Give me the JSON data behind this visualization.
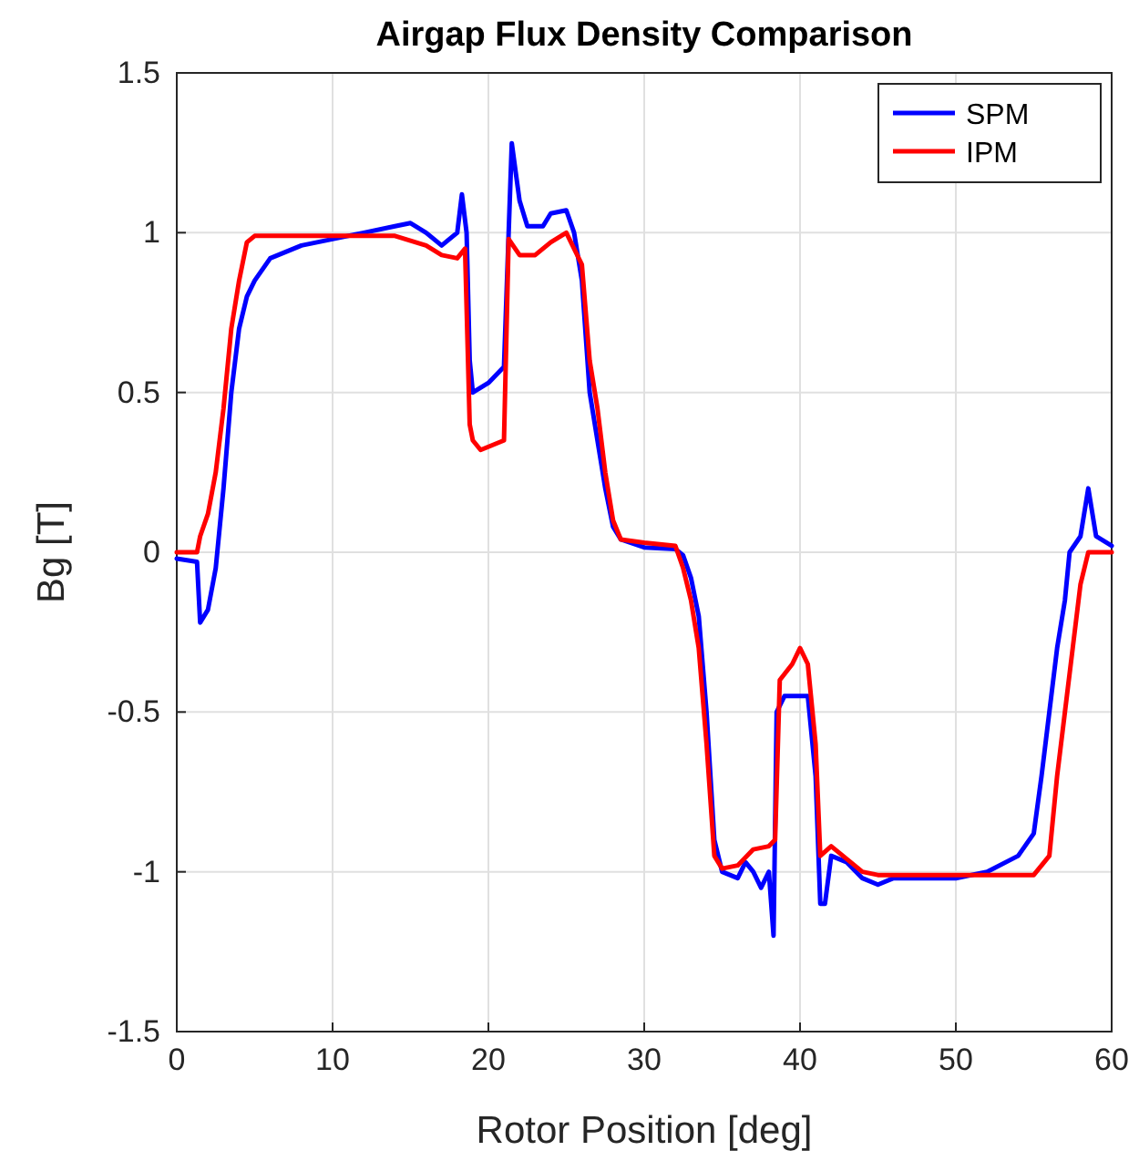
{
  "chart_data": {
    "type": "line",
    "title": "Airgap Flux Density Comparison",
    "xlabel": "Rotor Position [deg]",
    "ylabel": "Bg [T]",
    "xlim": [
      0,
      60
    ],
    "xticks": [
      0,
      10,
      20,
      30,
      40,
      50,
      60
    ],
    "ylim": [
      -1.5,
      1.5
    ],
    "yticks": [
      -1.5,
      -1,
      -0.5,
      0,
      0.5,
      1,
      1.5
    ],
    "grid": true,
    "legend": "top right",
    "line_style": "solid",
    "marker": "none",
    "series": [
      {
        "name": "SPM",
        "color": "#0000ff",
        "x": [
          0,
          1.3,
          1.5,
          2,
          2.5,
          3,
          3.5,
          4,
          4.5,
          5,
          6,
          8,
          10,
          12,
          14,
          15,
          16,
          17,
          18,
          18.3,
          18.6,
          18.8,
          19,
          20,
          21,
          21.5,
          22,
          22.5,
          23.5,
          24,
          25,
          25.5,
          26,
          26.5,
          27,
          27.5,
          28,
          28.5,
          30,
          32,
          32.5,
          33,
          33.5,
          34,
          34.5,
          35,
          36,
          36.5,
          37,
          37.5,
          38,
          38.3,
          38.5,
          39,
          40,
          40.5,
          41,
          41.3,
          41.6,
          42,
          43,
          44,
          45,
          46,
          50,
          52,
          54,
          55,
          55.5,
          56,
          56.5,
          57,
          57.3,
          58,
          58.5,
          59,
          60
        ],
        "values": [
          -0.02,
          -0.03,
          -0.22,
          -0.18,
          -0.05,
          0.2,
          0.5,
          0.7,
          0.8,
          0.85,
          0.92,
          0.96,
          0.98,
          1.0,
          1.02,
          1.03,
          1.0,
          0.96,
          1.0,
          1.12,
          1.0,
          0.6,
          0.5,
          0.53,
          0.58,
          1.28,
          1.1,
          1.02,
          1.02,
          1.06,
          1.07,
          1.0,
          0.85,
          0.5,
          0.35,
          0.2,
          0.08,
          0.04,
          0.015,
          0.01,
          -0.01,
          -0.08,
          -0.2,
          -0.5,
          -0.9,
          -1.0,
          -1.02,
          -0.97,
          -1.0,
          -1.05,
          -1.0,
          -1.2,
          -0.5,
          -0.45,
          -0.45,
          -0.45,
          -0.7,
          -1.1,
          -1.1,
          -0.95,
          -0.97,
          -1.02,
          -1.04,
          -1.02,
          -1.02,
          -1.0,
          -0.95,
          -0.88,
          -0.7,
          -0.5,
          -0.3,
          -0.15,
          0.0,
          0.05,
          0.2,
          0.05,
          0.02
        ]
      },
      {
        "name": "IPM",
        "color": "#ff0000",
        "x": [
          0,
          1.3,
          1.5,
          2,
          2.5,
          3,
          3.5,
          4,
          4.5,
          5,
          10,
          14,
          16,
          17,
          18,
          18.5,
          18.8,
          19,
          19.5,
          20,
          21,
          21.3,
          22,
          23,
          24,
          25,
          26,
          26.5,
          27,
          27.5,
          28,
          28.5,
          30,
          32,
          32.5,
          33,
          33.5,
          34,
          34.5,
          35,
          36,
          37,
          38,
          38.4,
          38.7,
          39.5,
          40,
          40.5,
          41,
          41.3,
          42,
          43,
          44,
          45,
          55,
          56,
          56.5,
          57,
          57.5,
          58,
          58.5,
          60
        ],
        "values": [
          0.0,
          0.0,
          0.05,
          0.12,
          0.25,
          0.45,
          0.7,
          0.85,
          0.97,
          0.99,
          0.99,
          0.99,
          0.96,
          0.93,
          0.92,
          0.95,
          0.4,
          0.35,
          0.32,
          0.33,
          0.35,
          0.98,
          0.93,
          0.93,
          0.97,
          1.0,
          0.9,
          0.6,
          0.45,
          0.25,
          0.1,
          0.04,
          0.03,
          0.02,
          -0.05,
          -0.15,
          -0.3,
          -0.6,
          -0.95,
          -0.99,
          -0.98,
          -0.93,
          -0.92,
          -0.9,
          -0.4,
          -0.35,
          -0.3,
          -0.35,
          -0.6,
          -0.95,
          -0.92,
          -0.96,
          -1.0,
          -1.01,
          -1.01,
          -0.95,
          -0.7,
          -0.5,
          -0.3,
          -0.1,
          0.0,
          0.0
        ]
      }
    ]
  }
}
